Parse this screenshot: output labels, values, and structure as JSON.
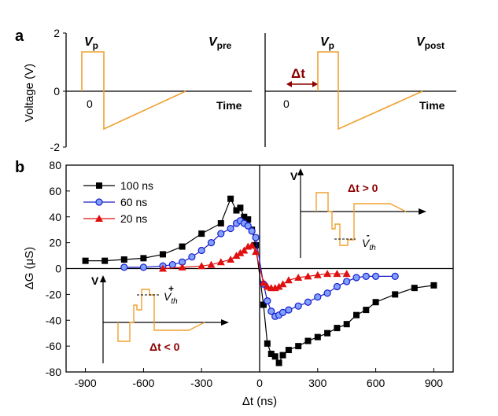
{
  "panel_a": {
    "label": "a",
    "ylabel": "Voltage (V)",
    "yticks": [
      "2",
      "0",
      "-2"
    ],
    "left": {
      "vp": "V",
      "vp_sub": "p",
      "title": "V",
      "title_sub": "pre",
      "zero": "0",
      "time": "Time"
    },
    "right": {
      "dt": "Δt",
      "vp": "V",
      "vp_sub": "p",
      "title": "V",
      "title_sub": "post",
      "zero": "0",
      "time": "Time"
    },
    "pulse_color": "#f0a030",
    "dt_color": "#8b0000"
  },
  "panel_b": {
    "label": "b",
    "inset_pos": {
      "v": "V",
      "dt_label": "Δt > 0",
      "vth": "V",
      "vth_sub": "th",
      "vth_sup": "-"
    },
    "inset_neg": {
      "v": "V",
      "dt_label": "Δt < 0",
      "vth": "V",
      "vth_sub": "th",
      "vth_sup": "+"
    }
  },
  "chart_data": {
    "type": "scatter",
    "xlabel": "Δt (ns)",
    "ylabel": "ΔG (μS)",
    "xlim": [
      -1000,
      1000
    ],
    "ylim": [
      -80,
      80
    ],
    "xticks": [
      -900,
      -600,
      -300,
      0,
      300,
      600,
      900
    ],
    "yticks": [
      -80,
      -60,
      -40,
      -20,
      0,
      20,
      40,
      60,
      80
    ],
    "legend_position": "top-left",
    "series": [
      {
        "name": "100 ns",
        "color": "#000000",
        "marker": "square",
        "x": [
          -900,
          -800,
          -700,
          -600,
          -500,
          -400,
          -300,
          -200,
          -150,
          -120,
          -100,
          -80,
          -60,
          -40,
          -20,
          20,
          40,
          60,
          80,
          100,
          120,
          150,
          200,
          250,
          300,
          350,
          400,
          450,
          500,
          550,
          600,
          700,
          800,
          900
        ],
        "y": [
          6,
          6,
          7,
          8,
          11,
          17,
          27,
          35,
          54,
          45,
          47,
          40,
          38,
          30,
          18,
          -28,
          -58,
          -66,
          -68,
          -73,
          -67,
          -63,
          -60,
          -56,
          -53,
          -50,
          -46,
          -43,
          -36,
          -32,
          -26,
          -20,
          -15,
          -13
        ]
      },
      {
        "name": "60 ns",
        "color": "#1c1ccc",
        "marker": "circle",
        "x": [
          -700,
          -600,
          -500,
          -450,
          -400,
          -350,
          -300,
          -250,
          -200,
          -150,
          -120,
          -100,
          -80,
          -60,
          -40,
          -20,
          20,
          40,
          60,
          80,
          100,
          120,
          150,
          200,
          250,
          300,
          350,
          400,
          450,
          500,
          550,
          600,
          700
        ],
        "y": [
          1,
          1,
          2,
          3,
          5,
          9,
          14,
          20,
          27,
          31,
          35,
          37,
          35,
          33,
          29,
          24,
          -12,
          -25,
          -33,
          -37,
          -36,
          -34,
          -32,
          -29,
          -26,
          -22,
          -19,
          -14,
          -10,
          -7,
          -6,
          -6,
          -6
        ]
      },
      {
        "name": "20 ns",
        "color": "#e01010",
        "marker": "triangle",
        "x": [
          -500,
          -400,
          -300,
          -250,
          -200,
          -150,
          -120,
          -100,
          -80,
          -60,
          -40,
          -20,
          20,
          40,
          60,
          80,
          100,
          120,
          150,
          200,
          250,
          300,
          350,
          400,
          450
        ],
        "y": [
          0,
          1,
          2,
          3,
          5,
          7,
          10,
          12,
          14,
          17,
          18,
          13,
          -11,
          -14,
          -15,
          -15,
          -14,
          -12,
          -9,
          -7,
          -6,
          -5,
          -4,
          -4,
          -4
        ]
      }
    ]
  }
}
